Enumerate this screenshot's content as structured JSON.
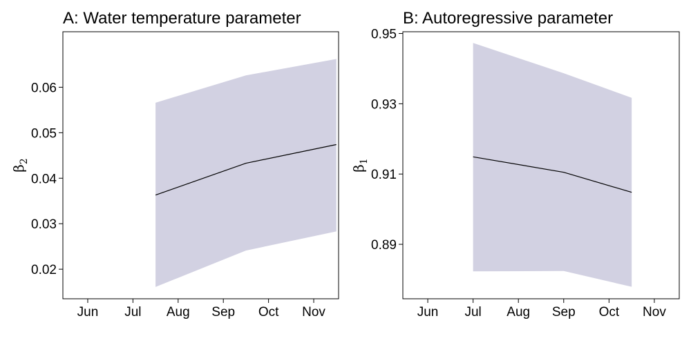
{
  "colors": {
    "band": "#d2d1e2",
    "line": "#000000",
    "frame": "#000000"
  },
  "chart_data": [
    {
      "type": "line",
      "title": "A: Water temperature parameter",
      "ylabel": "β",
      "ylabel_subscript": "2",
      "xlabel": "",
      "x_ticks": [
        "Jun",
        "Jul",
        "Aug",
        "Sep",
        "Oct",
        "Nov"
      ],
      "y_ticks": [
        "0.02",
        "0.03",
        "0.04",
        "0.05",
        "0.06"
      ],
      "y_tick_values": [
        0.02,
        0.03,
        0.04,
        0.05,
        0.06
      ],
      "ylim": [
        0.0135,
        0.0722
      ],
      "x": [
        1.5,
        3.5,
        5.5
      ],
      "series": [
        {
          "values": [
            0.0363,
            0.0433,
            0.0474
          ],
          "band_lower": [
            0.0161,
            0.0241,
            0.0283
          ],
          "band_upper": [
            0.0566,
            0.0626,
            0.0662
          ]
        }
      ],
      "grid": false
    },
    {
      "type": "line",
      "title": "B: Autoregressive parameter",
      "ylabel": "β",
      "ylabel_subscript": "1",
      "xlabel": "",
      "x_ticks": [
        "Jun",
        "Jul",
        "Aug",
        "Sep",
        "Oct",
        "Nov"
      ],
      "y_ticks": [
        "0.89",
        "0.91",
        "0.93",
        "0.95"
      ],
      "y_tick_values": [
        0.89,
        0.91,
        0.93,
        0.95
      ],
      "ylim": [
        0.8745,
        0.9505
      ],
      "x": [
        1.0,
        3.0,
        4.5
      ],
      "series": [
        {
          "values": [
            0.9149,
            0.9105,
            0.9048
          ],
          "band_lower": [
            0.8823,
            0.8824,
            0.8779
          ],
          "band_upper": [
            0.9473,
            0.9387,
            0.9317
          ]
        }
      ],
      "grid": false
    }
  ]
}
